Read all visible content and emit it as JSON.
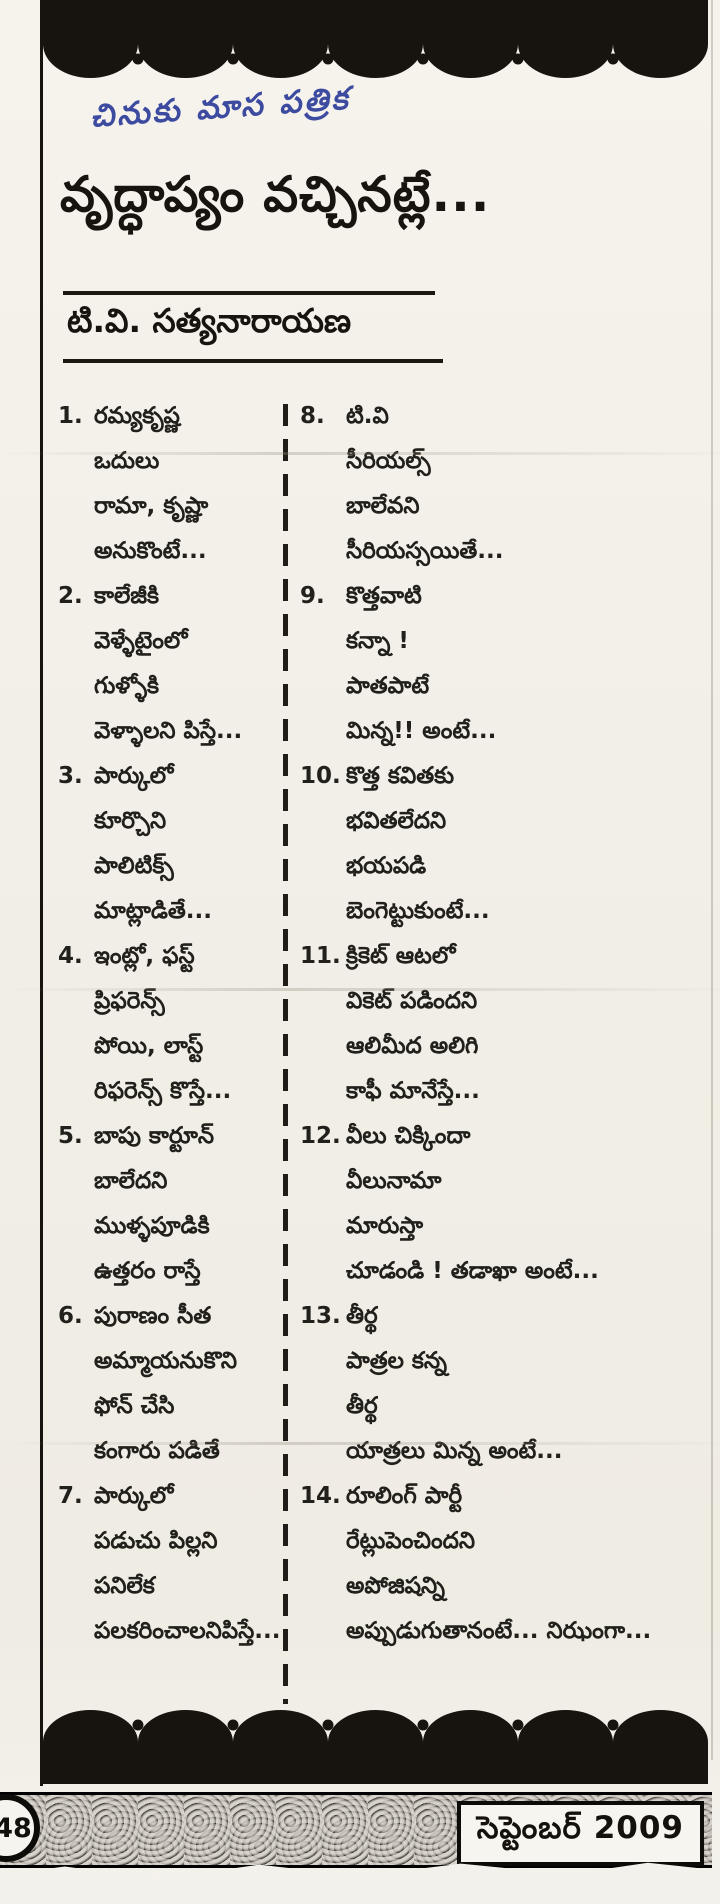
{
  "page": {
    "handwritten_note": "చినుకు మాస పత్రిక",
    "title": "వృద్ధాప్యం వచ్చినట్లే...",
    "author": "టి.వి. సత్యనారాయణ"
  },
  "poem": {
    "left_column": [
      {
        "no": "1.",
        "lines": [
          "రమ్యకృష్ణ",
          "ఒదులు",
          "రామా, కృష్ణా",
          "అనుకొంటే..."
        ]
      },
      {
        "no": "2.",
        "lines": [
          "కాలేజీకి",
          "వెళ్ళేటైంలో",
          "గుళ్ళోకి",
          "వెళ్ళాలని పిస్తే..."
        ]
      },
      {
        "no": "3.",
        "lines": [
          "పార్కులో",
          "కూర్చొని",
          "పాలిటిక్స్",
          "మాట్లాడితే..."
        ]
      },
      {
        "no": "4.",
        "lines": [
          "ఇంట్లో, ఫస్ట్",
          "ప్రిఫరెన్స్",
          "పోయి, లాస్ట్",
          "రిఫరెన్స్ కొస్తే..."
        ]
      },
      {
        "no": "5.",
        "lines": [
          "బాపు కార్టూన్",
          "బాలేదని",
          "ముళ్ళపూడికి",
          "ఉత్తరం రాస్తే"
        ]
      },
      {
        "no": "6.",
        "lines": [
          "పురాణం సీత",
          "అమ్మాయనుకొని",
          "ఫోన్ చేసి",
          "కంగారు పడితే"
        ]
      },
      {
        "no": "7.",
        "lines": [
          "పార్కులో",
          "పడుచు పిల్లని",
          "పనిలేక",
          "పలకరించాలనిపిస్తే..."
        ]
      }
    ],
    "right_column": [
      {
        "no": "8.",
        "lines": [
          "టి.వి",
          "సీరియల్స్",
          "బాలేవని",
          "సీరియస్సయితే..."
        ]
      },
      {
        "no": "9.",
        "lines": [
          "కొత్తవాటి",
          "కన్నా !",
          "పాతపాటే",
          "మిన్న!! అంటే..."
        ]
      },
      {
        "no": "10.",
        "lines": [
          "కొత్త కవితకు",
          "భవితలేదని",
          "భయపడి",
          "బెంగెట్టుకుంటే..."
        ]
      },
      {
        "no": "11.",
        "lines": [
          "క్రికెట్ ఆటలో",
          "వికెట్ పడిందని",
          "ఆలిమీద అలిగి",
          "కాఫీ మానేస్తే..."
        ]
      },
      {
        "no": "12.",
        "lines": [
          "వీలు చిక్కిందా",
          "వీలునామా",
          "మారుస్తా",
          "చూడండి ! తడాఖా అంటే..."
        ]
      },
      {
        "no": "13.",
        "lines": [
          "తీర్థ",
          "పాత్రల కన్న",
          "తీర్థ",
          "యాత్రలు మిన్న అంటే..."
        ]
      },
      {
        "no": "14.",
        "lines": [
          "రూలింగ్ పార్టీ",
          "రేట్లుపెంచిందని",
          "అపోజిషన్ని",
          "అప్పుడుగుతానంటే... నిఝంగా..."
        ]
      }
    ]
  },
  "footer": {
    "page_number": "48",
    "issue_date": "సెప్టెంబర్ 2009"
  },
  "colors": {
    "ink": "#1c1b18",
    "handwriting_ink": "#3c4ba0",
    "paper": "#f2efe9"
  }
}
